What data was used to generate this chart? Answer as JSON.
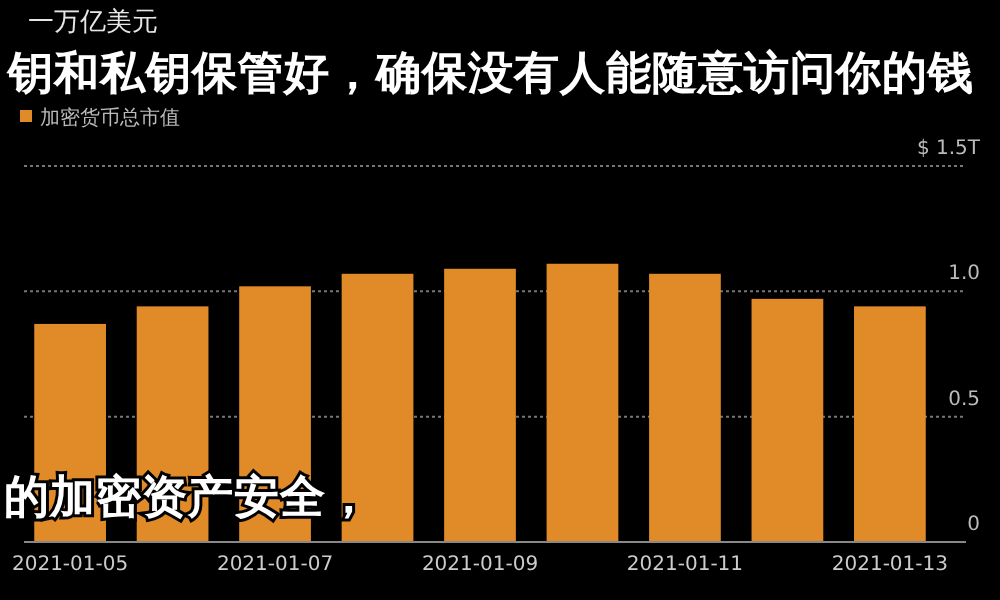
{
  "chart_data": {
    "type": "bar",
    "title": "一万亿美元",
    "categories": [
      "2021-01-05",
      null,
      "2021-01-07",
      null,
      "2021-01-09",
      null,
      "2021-01-11",
      null,
      "2021-01-13"
    ],
    "series": [
      {
        "name": "加密货币总市值",
        "color": "#e08b28",
        "values": [
          0.87,
          0.94,
          1.02,
          1.07,
          1.09,
          1.11,
          1.07,
          0.97,
          0.94
        ]
      }
    ],
    "ylim": [
      0,
      1.5
    ],
    "yticks": [
      0,
      0.5,
      {
        "value": 1,
        "label": "1.0"
      },
      {
        "value": 1.5,
        "label": "$ 1.5T"
      }
    ],
    "grid": "y",
    "legend": "top left",
    "annotations": [
      "钥和私钥保管好，确保没有人能随意访问你的钱",
      "的加密资产安全，"
    ]
  }
}
